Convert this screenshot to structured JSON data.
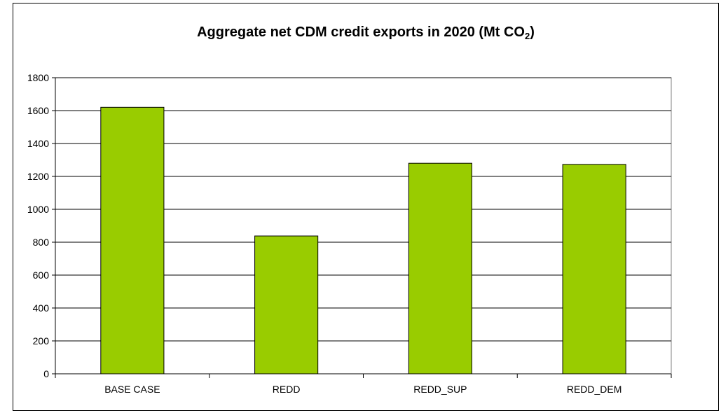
{
  "chart_data": {
    "type": "bar",
    "title_main": "Aggregate net CDM credit exports in 2020 (Mt CO",
    "title_sub": "2",
    "title_end": ")",
    "categories": [
      "BASE CASE",
      "REDD",
      "REDD_SUP",
      "REDD_DEM"
    ],
    "values": [
      1620,
      838,
      1280,
      1273
    ],
    "ylim": [
      0,
      1800
    ],
    "yticks": [
      0,
      200,
      400,
      600,
      800,
      1000,
      1200,
      1400,
      1600,
      1800
    ],
    "grid": true,
    "legend": "none",
    "bar_color": "#99cc00"
  }
}
